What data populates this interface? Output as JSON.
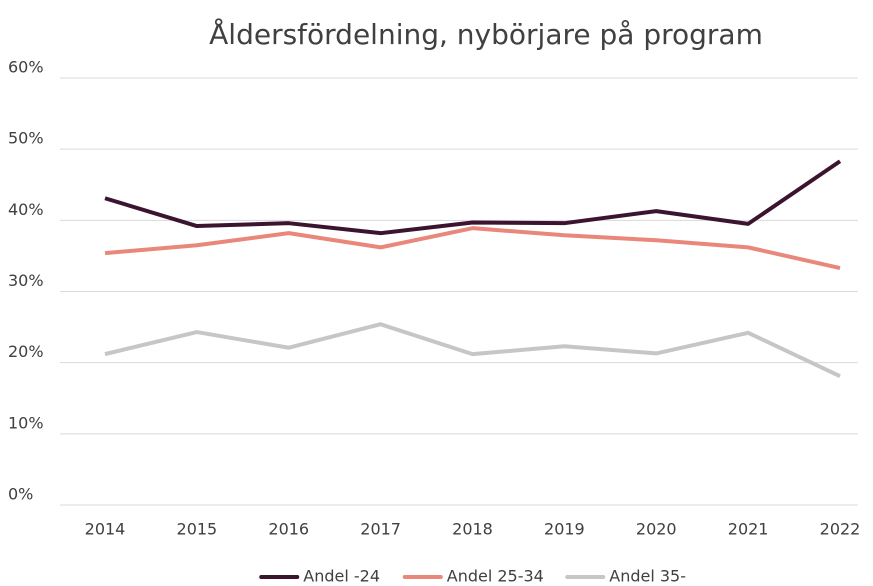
{
  "chart_data": {
    "type": "line",
    "title": "Åldersfördelning, nybörjare på program",
    "categories": [
      "2014",
      "2015",
      "2016",
      "2017",
      "2018",
      "2019",
      "2020",
      "2021",
      "2022"
    ],
    "series": [
      {
        "name": "Andel -24",
        "color": "#3b1430",
        "values": [
          43.1,
          39.2,
          39.6,
          38.2,
          39.7,
          39.6,
          41.3,
          39.5,
          48.3
        ]
      },
      {
        "name": "Andel 25-34",
        "color": "#e9877a",
        "values": [
          35.4,
          36.5,
          38.2,
          36.2,
          38.9,
          37.9,
          37.2,
          36.2,
          33.3
        ]
      },
      {
        "name": "Andel 35-",
        "color": "#c6c6c6",
        "values": [
          21.2,
          24.3,
          22.1,
          25.4,
          21.2,
          22.3,
          21.3,
          24.2,
          18.1
        ]
      }
    ],
    "ylim": [
      0,
      60
    ],
    "yticks": [
      {
        "value": 0,
        "label": "0%"
      },
      {
        "value": 10,
        "label": "10%"
      },
      {
        "value": 20,
        "label": "20%"
      },
      {
        "value": 30,
        "label": "30%"
      },
      {
        "value": 40,
        "label": "40%"
      },
      {
        "value": 50,
        "label": "50%"
      },
      {
        "value": 60,
        "label": "60%"
      }
    ],
    "grid": true,
    "legend": "bottom"
  }
}
